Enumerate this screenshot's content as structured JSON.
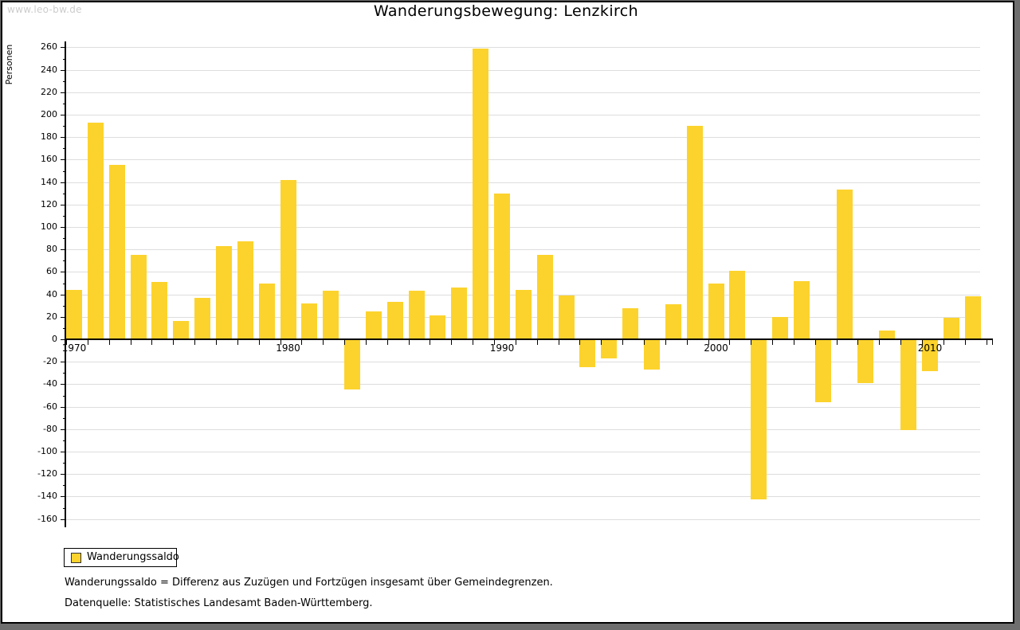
{
  "page": {
    "watermark": "www.leo-bw.de",
    "title": "Wanderungsbewegung: Lenzkirch"
  },
  "chart_data": {
    "type": "bar",
    "title": "Wanderungsbewegung: Lenzkirch",
    "xlabel": "",
    "ylabel": "Personen",
    "ylim": [
      -160,
      260
    ],
    "ytick_step": 20,
    "y_minor_tick_step": 10,
    "grid": true,
    "legend_position": "bottom-left",
    "bar_color": "#FCD32D",
    "categories": [
      1970,
      1971,
      1972,
      1973,
      1974,
      1975,
      1976,
      1977,
      1978,
      1979,
      1980,
      1981,
      1982,
      1983,
      1984,
      1985,
      1986,
      1987,
      1988,
      1989,
      1990,
      1991,
      1992,
      1993,
      1994,
      1995,
      1996,
      1997,
      1998,
      1999,
      2000,
      2001,
      2002,
      2003,
      2004,
      2005,
      2006,
      2007,
      2008,
      2009,
      2010,
      2011,
      2012
    ],
    "series": [
      {
        "name": "Wanderungssaldo",
        "values": [
          44,
          193,
          155,
          75,
          51,
          16,
          37,
          83,
          87,
          50,
          142,
          32,
          43,
          -44,
          25,
          33,
          43,
          21,
          46,
          259,
          130,
          44,
          75,
          39,
          -24,
          -16,
          28,
          -26,
          31,
          190,
          50,
          61,
          -142,
          20,
          52,
          -55,
          133,
          -38,
          8,
          -80,
          -28,
          19,
          38
        ]
      }
    ],
    "xticks_labeled": [
      "1970",
      "1980",
      "1990",
      "2000",
      "2010"
    ]
  },
  "legend": {
    "label": "Wanderungssaldo",
    "swatch_color": "#FCD32D"
  },
  "footnotes": {
    "line1": "Wanderungssaldo = Differenz aus Zuzügen und Fortzügen insgesamt über Gemeindegrenzen.",
    "line2": "Datenquelle: Statistisches Landesamt Baden-Württemberg."
  }
}
